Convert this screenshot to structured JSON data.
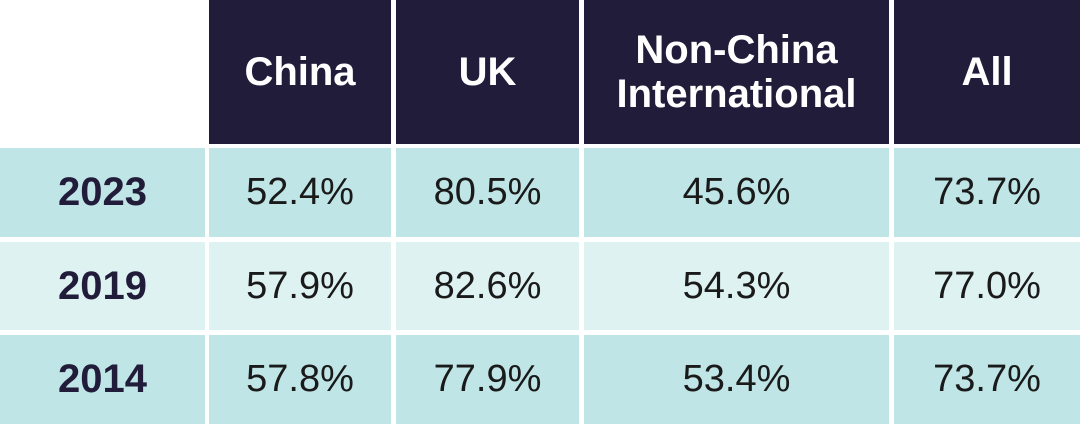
{
  "chart_data": {
    "type": "table",
    "columns": [
      "China",
      "UK",
      "Non-China International",
      "All"
    ],
    "rows": [
      {
        "label": "2023",
        "values": [
          "52.4%",
          "80.5%",
          "45.6%",
          "73.7%"
        ]
      },
      {
        "label": "2019",
        "values": [
          "57.9%",
          "82.6%",
          "54.3%",
          "77.0%"
        ]
      },
      {
        "label": "2014",
        "values": [
          "57.8%",
          "77.9%",
          "53.4%",
          "73.7%"
        ]
      }
    ],
    "colors": {
      "header": "#211c3a",
      "row_dark": "#bfe5e6",
      "row_light": "#dff2f2"
    }
  }
}
